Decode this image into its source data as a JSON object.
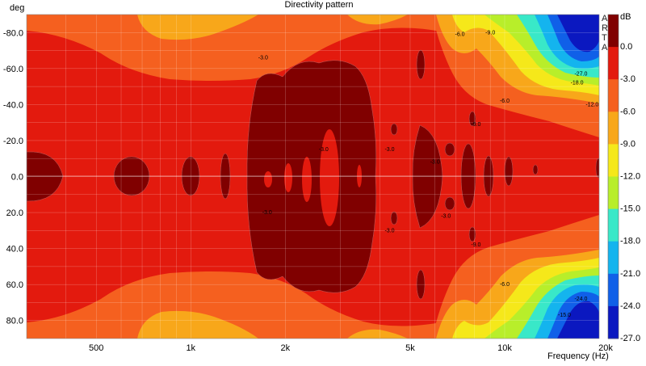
{
  "chart_data": {
    "type": "heatmap",
    "title": "Directivity pattern",
    "ylabel": "deg",
    "xlabel": "Frequency (Hz)",
    "x_scale": "log",
    "xlim": [
      300,
      20000
    ],
    "x_ticks": [
      {
        "value": 500,
        "label": "500"
      },
      {
        "value": 1000,
        "label": "1k"
      },
      {
        "value": 2000,
        "label": "2k"
      },
      {
        "value": 5000,
        "label": "5k"
      },
      {
        "value": 10000,
        "label": "10k"
      },
      {
        "value": 20000,
        "label": "20k"
      }
    ],
    "ylim": [
      -90,
      90
    ],
    "y_ticks": [
      {
        "value": -80,
        "label": "-80.0"
      },
      {
        "value": -60,
        "label": "-60.0"
      },
      {
        "value": -40,
        "label": "-40.0"
      },
      {
        "value": -20,
        "label": "-20.0"
      },
      {
        "value": 0,
        "label": "0.0"
      },
      {
        "value": 20,
        "label": "20.0"
      },
      {
        "value": 40,
        "label": "40.0"
      },
      {
        "value": 60,
        "label": "60.0"
      },
      {
        "value": 80,
        "label": "80.0"
      }
    ],
    "colorbar": {
      "unit": "dB",
      "levels": [
        {
          "label": "0.0",
          "color": "#800000"
        },
        {
          "label": "-3.0",
          "color": "#e31a0e"
        },
        {
          "label": "-6.0",
          "color": "#f5601f"
        },
        {
          "label": "-9.0",
          "color": "#f8a71a"
        },
        {
          "label": "-12.0",
          "color": "#f5e81a"
        },
        {
          "label": "-15.0",
          "color": "#b8ee2a"
        },
        {
          "label": "-18.0",
          "color": "#39e8c8"
        },
        {
          "label": "-21.0",
          "color": "#14b4ee"
        },
        {
          "label": "-24.0",
          "color": "#1060e8"
        },
        {
          "label": "-27.0",
          "color": "#0b18c0"
        }
      ]
    },
    "contour_labels": [
      {
        "text": "-3.0",
        "freq": 1700,
        "angle": -66
      },
      {
        "text": "-3.0",
        "freq": 2650,
        "angle": -15
      },
      {
        "text": "-3.0",
        "freq": 4300,
        "angle": -15
      },
      {
        "text": "-3.0",
        "freq": 4300,
        "angle": 30
      },
      {
        "text": "-3.0",
        "freq": 6000,
        "angle": -8
      },
      {
        "text": "-3.0",
        "freq": 6500,
        "angle": 22
      },
      {
        "text": "-3.0",
        "freq": 1750,
        "angle": 20
      },
      {
        "text": "-6.0",
        "freq": 7200,
        "angle": -79
      },
      {
        "text": "-6.0",
        "freq": 10000,
        "angle": -42
      },
      {
        "text": "-6.0",
        "freq": 10000,
        "angle": 60
      },
      {
        "text": "-9.0",
        "freq": 9000,
        "angle": -80
      },
      {
        "text": "-9.0",
        "freq": 8100,
        "angle": -29
      },
      {
        "text": "-9.0",
        "freq": 8100,
        "angle": 38
      },
      {
        "text": "-12.0",
        "freq": 19000,
        "angle": -40
      },
      {
        "text": "-15.0",
        "freq": 15500,
        "angle": 77
      },
      {
        "text": "-18.0",
        "freq": 17000,
        "angle": -52
      },
      {
        "text": "-24.0",
        "freq": 17500,
        "angle": 68
      },
      {
        "text": "-27.0",
        "freq": 17500,
        "angle": -57
      }
    ],
    "watermark": "ARTA",
    "grid": true
  }
}
